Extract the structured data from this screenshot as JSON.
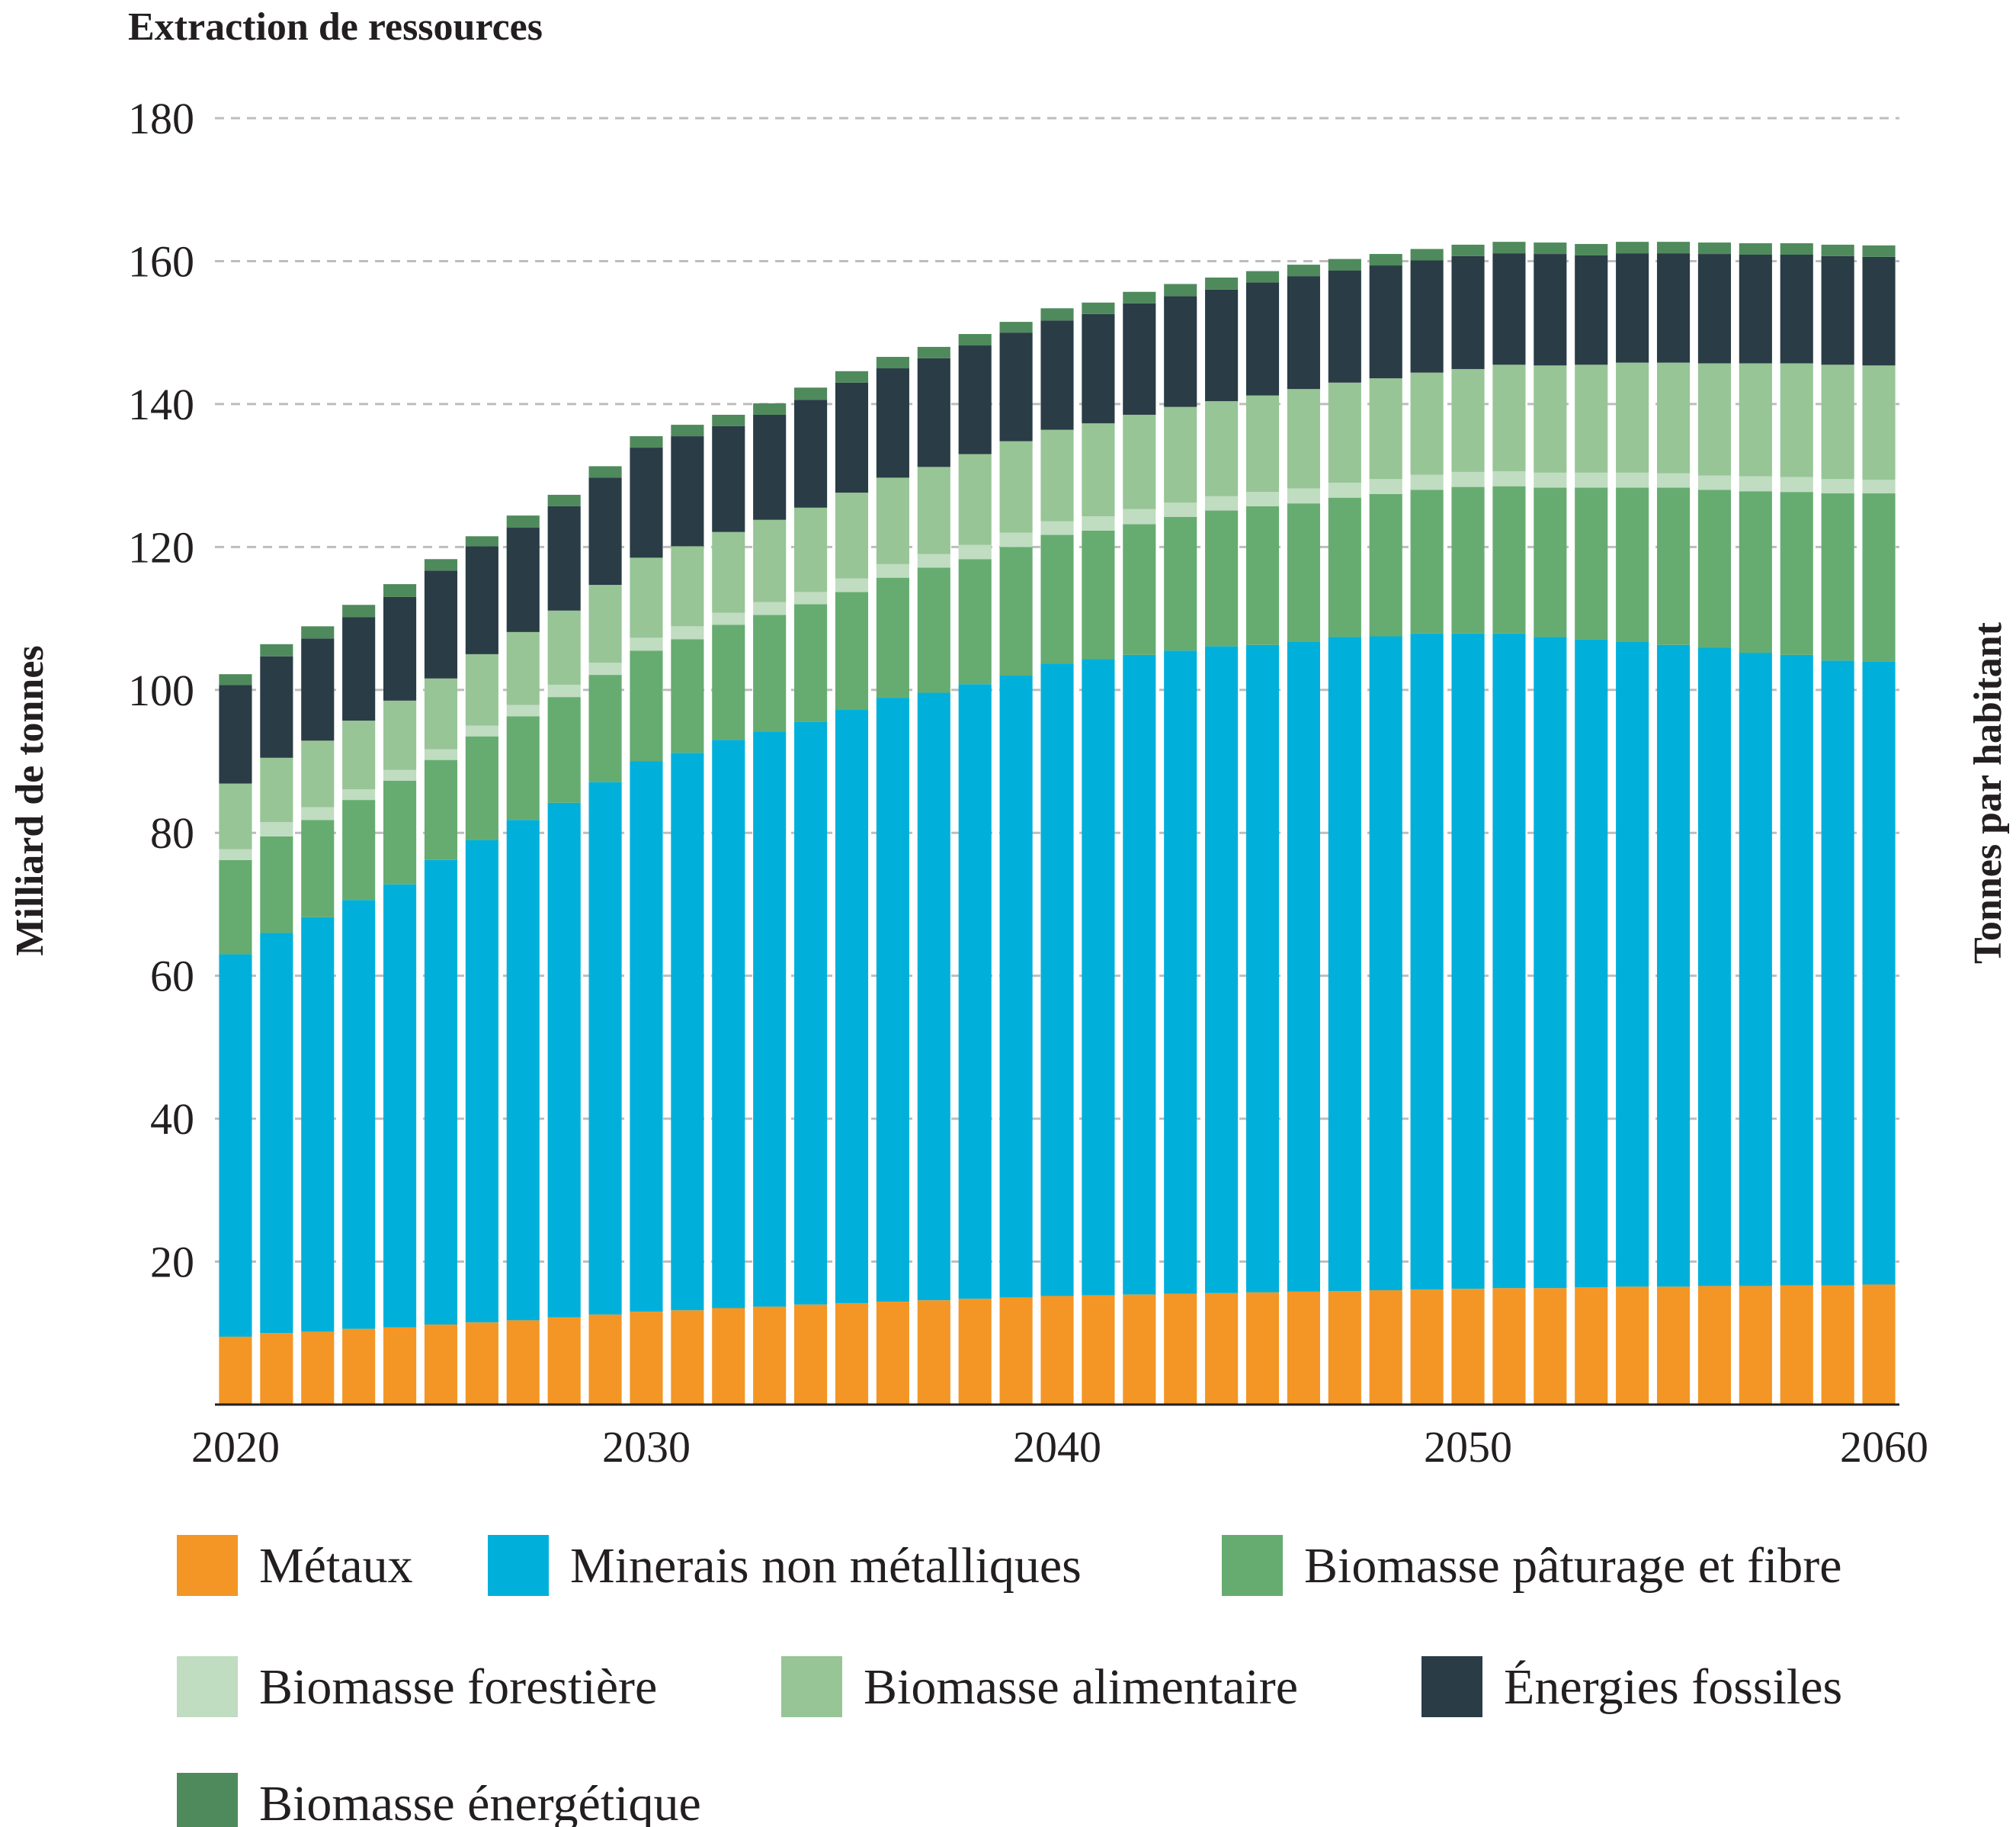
{
  "chart_data": {
    "type": "bar",
    "stacked": true,
    "title": "Extraction de ressources",
    "ylabel": "Milliard de tonnes",
    "ylabel_right": "Tonnes par habitant",
    "ylim": [
      0,
      180
    ],
    "yticks": [
      20,
      40,
      60,
      80,
      100,
      120,
      140,
      160,
      180
    ],
    "xtick_labels": [
      "2020",
      "2030",
      "2040",
      "2050",
      "2060"
    ],
    "grid": "horizontal dashed",
    "legend_position": "bottom",
    "x": [
      2020,
      2021,
      2022,
      2023,
      2024,
      2025,
      2026,
      2027,
      2028,
      2029,
      2030,
      2031,
      2032,
      2033,
      2034,
      2035,
      2036,
      2037,
      2038,
      2039,
      2040,
      2041,
      2042,
      2043,
      2044,
      2045,
      2046,
      2047,
      2048,
      2049,
      2050,
      2051,
      2052,
      2053,
      2054,
      2055,
      2056,
      2057,
      2058,
      2059,
      2060
    ],
    "series": [
      {
        "name": "Métaux",
        "color": "#f39625",
        "values": [
          9.5,
          10,
          10.2,
          10.6,
          10.8,
          11.2,
          11.5,
          11.8,
          12.2,
          12.6,
          13,
          13.2,
          13.5,
          13.7,
          14,
          14.2,
          14.4,
          14.6,
          14.8,
          15,
          15.2,
          15.3,
          15.4,
          15.5,
          15.6,
          15.7,
          15.8,
          15.9,
          16,
          16.1,
          16.2,
          16.3,
          16.3,
          16.4,
          16.5,
          16.5,
          16.6,
          16.6,
          16.7,
          16.7,
          16.8
        ]
      },
      {
        "name": "Minerais non métalliques",
        "color": "#00b0da",
        "values": [
          53.5,
          56,
          58,
          60,
          62,
          65,
          67.5,
          70,
          72,
          74.5,
          77,
          78,
          79.5,
          80.5,
          81.5,
          83,
          84.5,
          85,
          86,
          87,
          88.5,
          89,
          89.5,
          90,
          90.5,
          90.6,
          90.9,
          91.5,
          91.5,
          91.8,
          91.7,
          91.6,
          91.1,
          90.7,
          90.2,
          89.8,
          89.3,
          88.6,
          88.2,
          87.4,
          87.2
        ]
      },
      {
        "name": "Biomasse pâturage et fibre",
        "color": "#66ac70",
        "values": [
          13.2,
          13.5,
          13.6,
          14,
          14.5,
          14,
          14.5,
          14.5,
          14.8,
          15,
          15.5,
          15.9,
          16.1,
          16.3,
          16.5,
          16.5,
          16.8,
          17.5,
          17.5,
          18,
          18,
          18,
          18.3,
          18.7,
          19,
          19.4,
          19.4,
          19.5,
          19.9,
          20.1,
          20.5,
          20.6,
          20.9,
          21.2,
          21.6,
          22,
          22.1,
          22.6,
          22.8,
          23.4,
          23.5
        ]
      },
      {
        "name": "Biomasse forestière",
        "color": "#c0dcc1",
        "values": [
          1.5,
          2,
          1.8,
          1.5,
          1.5,
          1.5,
          1.5,
          1.6,
          1.7,
          1.7,
          1.8,
          1.8,
          1.7,
          1.8,
          1.7,
          1.9,
          1.9,
          1.9,
          2,
          2,
          1.9,
          2,
          2.1,
          2,
          2,
          2,
          2.1,
          2.1,
          2.1,
          2.1,
          2.1,
          2.1,
          2.1,
          2.1,
          2.1,
          2,
          2,
          2.1,
          2.1,
          2,
          1.9
        ]
      },
      {
        "name": "Biomasse alimentaire",
        "color": "#97c596",
        "values": [
          9.2,
          9,
          9.3,
          9.6,
          9.7,
          9.9,
          10,
          10.2,
          10.4,
          10.9,
          11.2,
          11.2,
          11.3,
          11.5,
          11.8,
          12,
          12.1,
          12.2,
          12.7,
          12.8,
          12.8,
          13,
          13.2,
          13.4,
          13.3,
          13.5,
          13.9,
          14,
          14.1,
          14.3,
          14.4,
          14.9,
          15,
          15.1,
          15.4,
          15.5,
          15.7,
          15.8,
          15.9,
          16,
          16
        ]
      },
      {
        "name": "Énergies fossiles",
        "color": "#2a3c46",
        "values": [
          13.8,
          14.2,
          14.3,
          14.5,
          14.5,
          15.1,
          15.1,
          14.6,
          14.6,
          15,
          15.4,
          15.4,
          14.8,
          14.7,
          15.1,
          15.4,
          15.3,
          15.2,
          15.2,
          15.2,
          15.3,
          15.3,
          15.6,
          15.5,
          15.6,
          15.8,
          15.8,
          15.7,
          15.8,
          15.7,
          15.8,
          15.6,
          15.6,
          15.3,
          15.3,
          15.3,
          15.3,
          15.2,
          15.2,
          15.2,
          15.2
        ]
      },
      {
        "name": "Biomasse énergétique",
        "color": "#4f8a5c",
        "values": [
          1.5,
          1.7,
          1.7,
          1.7,
          1.8,
          1.6,
          1.4,
          1.7,
          1.6,
          1.6,
          1.6,
          1.6,
          1.6,
          1.6,
          1.7,
          1.6,
          1.6,
          1.6,
          1.6,
          1.5,
          1.7,
          1.6,
          1.6,
          1.7,
          1.7,
          1.6,
          1.6,
          1.6,
          1.6,
          1.6,
          1.6,
          1.6,
          1.6,
          1.6,
          1.6,
          1.6,
          1.6,
          1.6,
          1.6,
          1.6,
          1.6
        ]
      }
    ]
  }
}
